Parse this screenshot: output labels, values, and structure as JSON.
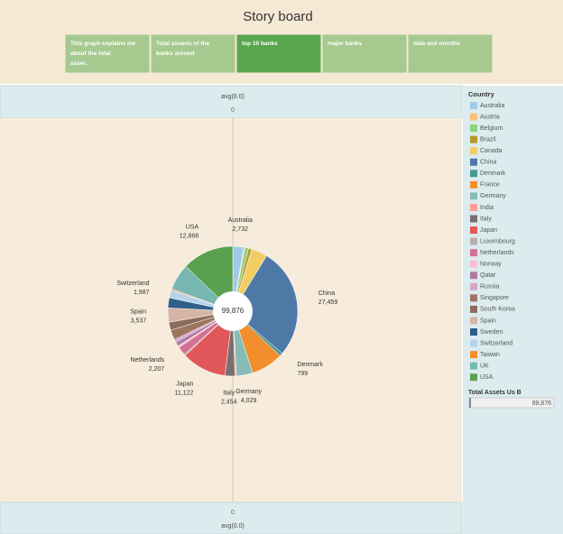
{
  "story": {
    "title": "Story board",
    "tabs": [
      "This graph explains me about the total asser..",
      "Total asserts of the banks around",
      "top 10 banks",
      "major banks",
      "date and months"
    ],
    "selected": 2
  },
  "header": {
    "label": "avg(0.0)",
    "value": "0"
  },
  "chart_data": {
    "type": "pie",
    "legend_title": "Country",
    "categories": [
      "Australia",
      "Austria",
      "Belgium",
      "Brazil",
      "Canada",
      "China",
      "Denmark",
      "France",
      "Germany",
      "India",
      "Italy",
      "Japan",
      "Luxembourg",
      "Netherlands",
      "Norway",
      "Qatar",
      "Russia",
      "Singapore",
      "South Korea",
      "Spain",
      "Sweden",
      "Switzerland",
      "Taiwan",
      "UK",
      "USA"
    ],
    "values": [
      2732,
      300,
      900,
      800,
      4000,
      27459,
      799,
      8000,
      4029,
      400,
      2454,
      11122,
      300,
      2207,
      400,
      1082,
      700,
      2500,
      2000,
      3537,
      2500,
      1987,
      300,
      6500,
      12868
    ],
    "value_labels": [
      "2,732",
      null,
      null,
      null,
      null,
      "27,459",
      "799",
      null,
      "4,029",
      null,
      "2,454",
      "11,122",
      null,
      "2,207",
      null,
      null,
      null,
      null,
      null,
      "3,537",
      null,
      "1,987",
      null,
      null,
      "12,868"
    ],
    "colors": [
      "#a0cbe8",
      "#ffbe7d",
      "#8cd17d",
      "#b6992d",
      "#f1ce63",
      "#4e79a7",
      "#499894",
      "#f28e2b",
      "#86bcb6",
      "#ff9d9a",
      "#79706e",
      "#e15759",
      "#bab0ac",
      "#d37295",
      "#fabfd2",
      "#b07aa1",
      "#d4a6c8",
      "#9d7660",
      "#8b6c5c",
      "#d7b5a6",
      "#2f5f8a",
      "#b5d4ea",
      "#f28e2b",
      "#76b7b2",
      "#59a14f"
    ],
    "total_label": "99,876"
  },
  "filter": {
    "title": "Total Assets Us B"
  }
}
